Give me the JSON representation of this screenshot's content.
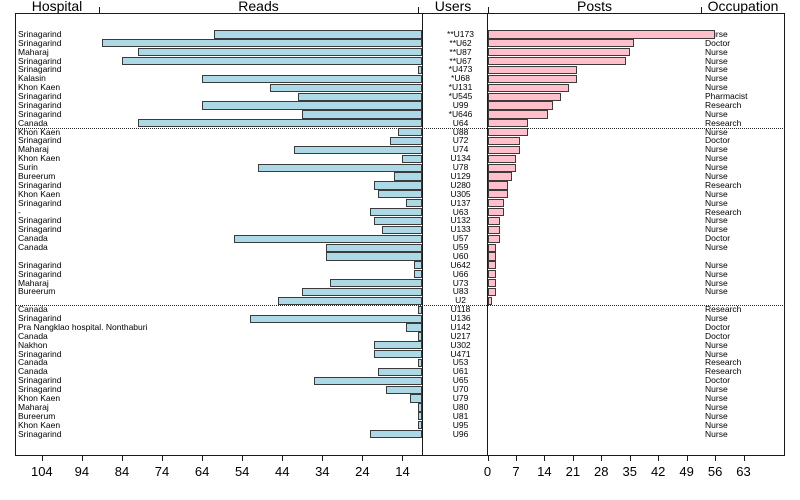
{
  "headers": {
    "hospital": "Hospital",
    "reads": "Reads",
    "users": "Users",
    "posts": "Posts",
    "occupation": "Occupation"
  },
  "colors": {
    "reads_fill": "#ADD8E6",
    "posts_fill": "#FFC0CB",
    "bar_border": "#3b3b3b",
    "frame": "#1a1a1a"
  },
  "chart_data": {
    "type": "bar",
    "subtype": "bidirectional-pyramid",
    "left_panel": {
      "label": "Reads",
      "axis_ticks": [
        104,
        94,
        84,
        74,
        64,
        54,
        44,
        34,
        24,
        14
      ],
      "axis_reversed": true,
      "baseline_value": 9
    },
    "right_panel": {
      "label": "Posts",
      "axis_ticks": [
        0,
        7,
        14,
        21,
        28,
        35,
        42,
        49,
        56,
        63
      ]
    },
    "separators_after_row": [
      11,
      31
    ],
    "columns": [
      "hospital",
      "user",
      "occupation",
      "reads",
      "posts"
    ],
    "rows": [
      {
        "hospital": "Srinagarind",
        "user": "**U173",
        "occupation": "Nurse",
        "reads": 61,
        "posts": 56
      },
      {
        "hospital": "Srinagarind",
        "user": "**U62",
        "occupation": "Doctor",
        "reads": 89,
        "posts": 36
      },
      {
        "hospital": "Maharaj",
        "user": "**U87",
        "occupation": "Nurse",
        "reads": 80,
        "posts": 35
      },
      {
        "hospital": "Srinagarind",
        "user": "**U67",
        "occupation": "Nurse",
        "reads": 84,
        "posts": 34
      },
      {
        "hospital": "Srinagarind",
        "user": "*U473",
        "occupation": "Nurse",
        "reads": 10,
        "posts": 22
      },
      {
        "hospital": "Kalasin",
        "user": "*U68",
        "occupation": "Nurse",
        "reads": 64,
        "posts": 22
      },
      {
        "hospital": "Khon Kaen",
        "user": "*U131",
        "occupation": "Nurse",
        "reads": 47,
        "posts": 20
      },
      {
        "hospital": "Srinagarind",
        "user": "*U545",
        "occupation": "Pharmacist",
        "reads": 40,
        "posts": 18
      },
      {
        "hospital": "Srinagarind",
        "user": "U99",
        "occupation": "Research",
        "reads": 64,
        "posts": 16
      },
      {
        "hospital": "Srinagarind",
        "user": "*U646",
        "occupation": "Nurse",
        "reads": 39,
        "posts": 15
      },
      {
        "hospital": "Canada",
        "user": "U64",
        "occupation": "Research",
        "reads": 80,
        "posts": 10
      },
      {
        "hospital": "Khon Kaen",
        "user": "U88",
        "occupation": "Nurse",
        "reads": 15,
        "posts": 10
      },
      {
        "hospital": "Srinagarind",
        "user": "U72",
        "occupation": "Doctor",
        "reads": 17,
        "posts": 8
      },
      {
        "hospital": "Maharaj",
        "user": "U74",
        "occupation": "Nurse",
        "reads": 41,
        "posts": 8
      },
      {
        "hospital": "Khon Kaen",
        "user": "U134",
        "occupation": "Nurse",
        "reads": 14,
        "posts": 7
      },
      {
        "hospital": "Surin",
        "user": "U78",
        "occupation": "Nurse",
        "reads": 50,
        "posts": 7
      },
      {
        "hospital": "Bureerum",
        "user": "U129",
        "occupation": "Nurse",
        "reads": 16,
        "posts": 6
      },
      {
        "hospital": "Srinagarind",
        "user": "U280",
        "occupation": "Research",
        "reads": 21,
        "posts": 5
      },
      {
        "hospital": "Khon Kaen",
        "user": "U305",
        "occupation": "Nurse",
        "reads": 20,
        "posts": 5
      },
      {
        "hospital": "Srinagarind",
        "user": "U137",
        "occupation": "Nurse",
        "reads": 13,
        "posts": 4
      },
      {
        "hospital": "-",
        "user": "U63",
        "occupation": "Research",
        "reads": 22,
        "posts": 4
      },
      {
        "hospital": "Srinagarind",
        "user": "U132",
        "occupation": "Nurse",
        "reads": 21,
        "posts": 3
      },
      {
        "hospital": "Srinagarind",
        "user": "U133",
        "occupation": "Nurse",
        "reads": 19,
        "posts": 3
      },
      {
        "hospital": "Canada",
        "user": "U57",
        "occupation": "Doctor",
        "reads": 56,
        "posts": 3
      },
      {
        "hospital": "Canada",
        "user": "U59",
        "occupation": "Nurse",
        "reads": 33,
        "posts": 2
      },
      {
        "hospital": "",
        "user": "U60",
        "occupation": "",
        "reads": 33,
        "posts": 2
      },
      {
        "hospital": "Srinagarind",
        "user": "U642",
        "occupation": "Nurse",
        "reads": 11,
        "posts": 2
      },
      {
        "hospital": "Srinagarind",
        "user": "U66",
        "occupation": "Nurse",
        "reads": 11,
        "posts": 2
      },
      {
        "hospital": "Maharaj",
        "user": "U73",
        "occupation": "Nurse",
        "reads": 32,
        "posts": 2
      },
      {
        "hospital": "Bureerum",
        "user": "U83",
        "occupation": "Nurse",
        "reads": 39,
        "posts": 2
      },
      {
        "hospital": "",
        "user": "U2",
        "occupation": "",
        "reads": 45,
        "posts": 1
      },
      {
        "hospital": "Canada",
        "user": "U118",
        "occupation": "Research",
        "reads": 10,
        "posts": 0
      },
      {
        "hospital": "Srinagarind",
        "user": "U136",
        "occupation": "Nurse",
        "reads": 52,
        "posts": 0
      },
      {
        "hospital": "Pra Nangklao hospital. Nonthaburi",
        "user": "U142",
        "occupation": "Doctor",
        "reads": 13,
        "posts": 0
      },
      {
        "hospital": "Canada",
        "user": "U217",
        "occupation": "Doctor",
        "reads": 10,
        "posts": 0
      },
      {
        "hospital": "Nakhon",
        "user": "U302",
        "occupation": "Nurse",
        "reads": 21,
        "posts": 0
      },
      {
        "hospital": "Srinagarind",
        "user": "U471",
        "occupation": "Nurse",
        "reads": 21,
        "posts": 0
      },
      {
        "hospital": "Canada",
        "user": "U53",
        "occupation": "Research",
        "reads": 10,
        "posts": 0
      },
      {
        "hospital": "Canada",
        "user": "U61",
        "occupation": "Research",
        "reads": 20,
        "posts": 0
      },
      {
        "hospital": "Srinagarind",
        "user": "U65",
        "occupation": "Doctor",
        "reads": 36,
        "posts": 0
      },
      {
        "hospital": "Srinagarind",
        "user": "U70",
        "occupation": "Nurse",
        "reads": 18,
        "posts": 0
      },
      {
        "hospital": "Khon Kaen",
        "user": "U79",
        "occupation": "Nurse",
        "reads": 12,
        "posts": 0
      },
      {
        "hospital": "Maharaj",
        "user": "U80",
        "occupation": "Nurse",
        "reads": 10,
        "posts": 0
      },
      {
        "hospital": "Bureerum",
        "user": "U81",
        "occupation": "Nurse",
        "reads": 10,
        "posts": 0
      },
      {
        "hospital": "Khon Kaen",
        "user": "U95",
        "occupation": "Nurse",
        "reads": 10,
        "posts": 0
      },
      {
        "hospital": "Srinagarind",
        "user": "U96",
        "occupation": "Nurse",
        "reads": 22,
        "posts": 0
      }
    ]
  }
}
